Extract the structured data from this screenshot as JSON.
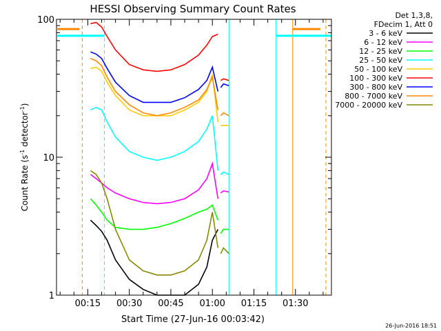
{
  "chart_data": {
    "type": "line",
    "title": "HESSI Observing Summary Count Rates",
    "xlabel": "Start Time (27-Jun-16 00:03:42)",
    "ylabel_main": "Count Rate (s",
    "ylabel_sup": "-1",
    "ylabel_rest": " detector",
    "ylabel_sup2": "-1",
    "ylabel_end": ")",
    "y_scale": "log",
    "ylim": [
      1,
      100
    ],
    "xlim": [
      "00:03:42",
      "01:43:00"
    ],
    "y_ticks": [
      "1",
      "10",
      "100"
    ],
    "x_ticks": [
      "00:15",
      "00:30",
      "00:45",
      "01:00",
      "01:15",
      "01:30"
    ],
    "legend_header": [
      "Det 1,3,8,",
      "FDecim 1, Att 0"
    ],
    "legend_position": "right",
    "timestamp": "26-Jun-2016 18:51",
    "series": [
      {
        "name": "3 - 6 keV",
        "color": "#000000",
        "segments": [
          {
            "x": [
              "00:16",
              "00:18",
              "00:20",
              "00:22",
              "00:25",
              "00:30",
              "00:35",
              "00:40",
              "00:45",
              "00:50",
              "00:55",
              "00:58",
              "01:00",
              "01:02"
            ],
            "y": [
              3.5,
              3.2,
              2.9,
              2.5,
              1.8,
              1.3,
              1.1,
              1.0,
              1.0,
              1.0,
              1.2,
              1.6,
              2.5,
              3.0
            ]
          }
        ]
      },
      {
        "name": "6 - 12 keV",
        "color": "#ff00ff",
        "segments": [
          {
            "x": [
              "00:16",
              "00:18",
              "00:20",
              "00:22",
              "00:25",
              "00:30",
              "00:35",
              "00:40",
              "00:45",
              "00:50",
              "00:55",
              "00:58",
              "01:00",
              "01:02"
            ],
            "y": [
              7.5,
              7.0,
              6.5,
              6.0,
              5.5,
              5.0,
              4.7,
              4.6,
              4.7,
              5.0,
              5.8,
              7.0,
              9.0,
              5.0
            ]
          },
          {
            "x": [
              "01:03",
              "01:04",
              "01:06"
            ],
            "y": [
              5.5,
              5.7,
              5.6
            ]
          }
        ]
      },
      {
        "name": "12 - 25 keV",
        "color": "#00ff00",
        "segments": [
          {
            "x": [
              "00:16",
              "00:18",
              "00:20",
              "00:22",
              "00:25",
              "00:30",
              "00:35",
              "00:40",
              "00:45",
              "00:50",
              "00:55",
              "00:58",
              "01:00",
              "01:02"
            ],
            "y": [
              5.0,
              4.5,
              4.0,
              3.5,
              3.1,
              3.0,
              3.0,
              3.1,
              3.3,
              3.6,
              4.0,
              4.2,
              4.5,
              3.5
            ]
          },
          {
            "x": [
              "01:03",
              "01:04",
              "01:06"
            ],
            "y": [
              2.8,
              3.0,
              3.0
            ]
          }
        ]
      },
      {
        "name": "25 - 50 keV",
        "color": "#00ffff",
        "segments": [
          {
            "x": [
              "00:16",
              "00:18",
              "00:20",
              "00:22",
              "00:25",
              "00:30",
              "00:35",
              "00:40",
              "00:45",
              "00:50",
              "00:55",
              "00:58",
              "01:00",
              "01:02"
            ],
            "y": [
              22,
              23,
              22,
              18,
              14,
              11,
              10,
              9.5,
              10,
              11,
              13,
              16,
              20,
              8
            ]
          },
          {
            "x": [
              "01:03",
              "01:04",
              "01:06"
            ],
            "y": [
              7.5,
              7.8,
              7.5
            ]
          }
        ]
      },
      {
        "name": "50 - 100 keV",
        "color": "#ffcc00",
        "segments": [
          {
            "x": [
              "00:16",
              "00:18",
              "00:20",
              "00:22",
              "00:25",
              "00:30",
              "00:35",
              "00:40",
              "00:45",
              "00:50",
              "00:55",
              "00:58",
              "01:00",
              "01:02"
            ],
            "y": [
              44,
              45,
              42,
              35,
              28,
              22,
              20,
              20,
              20,
              22,
              25,
              30,
              40,
              18
            ]
          },
          {
            "x": [
              "01:03",
              "01:04",
              "01:06"
            ],
            "y": [
              17,
              17,
              17
            ]
          }
        ]
      },
      {
        "name": "100 - 300 keV",
        "color": "#ff0000",
        "segments": [
          {
            "x": [
              "00:16",
              "00:18",
              "00:20",
              "00:22",
              "00:25",
              "00:30",
              "00:35",
              "00:40",
              "00:45",
              "00:50",
              "00:55",
              "00:58",
              "01:00",
              "01:02"
            ],
            "y": [
              93,
              95,
              88,
              75,
              60,
              47,
              43,
              42,
              43,
              47,
              55,
              65,
              75,
              78
            ]
          },
          {
            "x": [
              "01:03",
              "01:04",
              "01:06"
            ],
            "y": [
              36,
              37,
              36
            ]
          }
        ]
      },
      {
        "name": "300 - 800 keV",
        "color": "#0000ff",
        "segments": [
          {
            "x": [
              "00:16",
              "00:18",
              "00:20",
              "00:22",
              "00:25",
              "00:30",
              "00:35",
              "00:40",
              "00:45",
              "00:50",
              "00:55",
              "00:58",
              "01:00",
              "01:02"
            ],
            "y": [
              58,
              56,
              52,
              44,
              35,
              28,
              25,
              25,
              25,
              27,
              31,
              36,
              45,
              30
            ]
          },
          {
            "x": [
              "01:03",
              "01:04",
              "01:06"
            ],
            "y": [
              32,
              34,
              33
            ]
          }
        ]
      },
      {
        "name": "800 - 7000 keV",
        "color": "#ff8800",
        "segments": [
          {
            "x": [
              "00:04",
              "00:12"
            ],
            "y": [
              85,
              85
            ]
          },
          {
            "x": [
              "00:16",
              "00:18",
              "00:20",
              "00:22",
              "00:25",
              "00:30",
              "00:35",
              "00:40",
              "00:45",
              "00:50",
              "00:55",
              "00:58",
              "01:00",
              "01:02"
            ],
            "y": [
              52,
              50,
              46,
              38,
              30,
              24,
              21,
              20,
              21,
              23,
              26,
              31,
              38,
              22
            ]
          },
          {
            "x": [
              "01:03",
              "01:04",
              "01:06"
            ],
            "y": [
              20,
              21,
              20
            ]
          },
          {
            "x": [
              "01:29",
              "01:39"
            ],
            "y": [
              85,
              85
            ]
          }
        ]
      },
      {
        "name": "7000 - 20000 keV",
        "color": "#888800",
        "segments": [
          {
            "x": [
              "00:16",
              "00:18",
              "00:20",
              "00:22",
              "00:25",
              "00:30",
              "00:35",
              "00:40",
              "00:45",
              "00:50",
              "00:55",
              "00:58",
              "01:00",
              "01:02"
            ],
            "y": [
              8.0,
              7.5,
              6.5,
              5.0,
              3.0,
              1.8,
              1.5,
              1.4,
              1.4,
              1.5,
              1.8,
              2.5,
              4.0,
              2.2
            ]
          },
          {
            "x": [
              "01:03",
              "01:04",
              "01:06"
            ],
            "y": [
              2.0,
              2.2,
              2.0
            ]
          }
        ]
      }
    ],
    "attenuator_lines": {
      "color": "#00ffff",
      "segments": [
        {
          "x": [
            "00:04",
            "00:21"
          ],
          "y": [
            76,
            76
          ]
        },
        {
          "x": [
            "01:23",
            "01:43"
          ],
          "y": [
            76,
            76
          ]
        }
      ]
    },
    "vertical_markers": [
      {
        "x": "00:13",
        "color": "#ff8800",
        "style": "dashed"
      },
      {
        "x": "00:21",
        "color": "#00ffff",
        "style": "dashed"
      },
      {
        "x": "01:06",
        "color": "#00ffff",
        "style": "solid"
      },
      {
        "x": "01:23",
        "color": "#00ffff",
        "style": "solid"
      },
      {
        "x": "01:29",
        "color": "#ff8800",
        "style": "solid"
      },
      {
        "x": "01:41",
        "color": "#ff8800",
        "style": "dashed"
      }
    ]
  }
}
